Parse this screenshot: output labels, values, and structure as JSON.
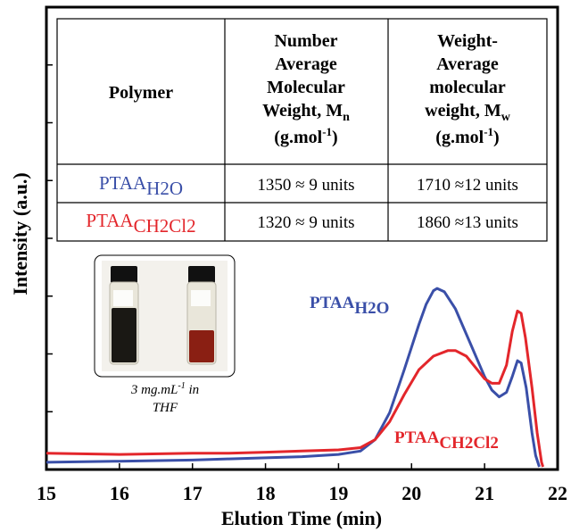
{
  "chart_data": {
    "type": "line",
    "xlabel": "Elution Time (min)",
    "ylabel": "Intensity (a.u.)",
    "xlim": [
      15,
      22
    ],
    "ylim": [
      0,
      1
    ],
    "x_ticks": [
      "15",
      "16",
      "17",
      "18",
      "19",
      "20",
      "21",
      "22"
    ],
    "y_tick_count": 8,
    "y_tick_labels_shown": false,
    "grid": false,
    "series": [
      {
        "name_main": "PTAA",
        "name_sub": "H2O",
        "color": "#3a4fa8",
        "points": [
          [
            15.0,
            0.02
          ],
          [
            16.0,
            0.025
          ],
          [
            17.0,
            0.03
          ],
          [
            17.5,
            0.035
          ],
          [
            18.0,
            0.04
          ],
          [
            18.5,
            0.045
          ],
          [
            19.0,
            0.055
          ],
          [
            19.3,
            0.07
          ],
          [
            19.5,
            0.12
          ],
          [
            19.7,
            0.24
          ],
          [
            19.9,
            0.43
          ],
          [
            20.1,
            0.63
          ],
          [
            20.2,
            0.72
          ],
          [
            20.3,
            0.78
          ],
          [
            20.35,
            0.79
          ],
          [
            20.45,
            0.775
          ],
          [
            20.6,
            0.7
          ],
          [
            20.8,
            0.55
          ],
          [
            21.0,
            0.4
          ],
          [
            21.1,
            0.34
          ],
          [
            21.2,
            0.31
          ],
          [
            21.3,
            0.33
          ],
          [
            21.38,
            0.4
          ],
          [
            21.45,
            0.47
          ],
          [
            21.5,
            0.46
          ],
          [
            21.57,
            0.35
          ],
          [
            21.65,
            0.15
          ],
          [
            21.7,
            0.05
          ],
          [
            21.75,
            0.0
          ]
        ]
      },
      {
        "name_main": "PTAA",
        "name_sub": "CH2Cl2",
        "color": "#e3262b",
        "points": [
          [
            15.0,
            0.06
          ],
          [
            16.0,
            0.055
          ],
          [
            17.0,
            0.06
          ],
          [
            17.5,
            0.06
          ],
          [
            18.0,
            0.065
          ],
          [
            18.5,
            0.07
          ],
          [
            19.0,
            0.075
          ],
          [
            19.3,
            0.085
          ],
          [
            19.5,
            0.12
          ],
          [
            19.7,
            0.2
          ],
          [
            19.9,
            0.32
          ],
          [
            20.1,
            0.43
          ],
          [
            20.3,
            0.49
          ],
          [
            20.5,
            0.515
          ],
          [
            20.6,
            0.515
          ],
          [
            20.75,
            0.49
          ],
          [
            20.9,
            0.43
          ],
          [
            21.0,
            0.39
          ],
          [
            21.1,
            0.37
          ],
          [
            21.2,
            0.37
          ],
          [
            21.3,
            0.45
          ],
          [
            21.38,
            0.6
          ],
          [
            21.45,
            0.69
          ],
          [
            21.5,
            0.68
          ],
          [
            21.56,
            0.57
          ],
          [
            21.65,
            0.35
          ],
          [
            21.72,
            0.15
          ],
          [
            21.78,
            0.02
          ],
          [
            21.8,
            0.0
          ]
        ]
      }
    ],
    "annotations": [
      {
        "text_main": "PTAA",
        "text_sub": "H2O",
        "color": "#3a4fa8"
      },
      {
        "text_main": "PTAA",
        "text_sub": "CH2Cl2",
        "color": "#e3262b"
      }
    ]
  },
  "table": {
    "headers": [
      "Polymer",
      "Number Average Molecular Weight, Mn (g.mol-1)",
      "Weight-Average molecular weight, Mw (g.mol-1)"
    ],
    "header_lines": {
      "col2": [
        "Number",
        "Average",
        "Molecular",
        "Weight, M",
        "n",
        "(g.mol",
        "-1",
        ")"
      ],
      "col3": [
        "Weight-",
        "Average",
        "molecular",
        "weight, M",
        "w",
        "(g.mol",
        "-1",
        ")"
      ]
    },
    "rows": [
      {
        "polymer_main": "PTAA",
        "polymer_sub": "H2O",
        "color": "#3a4fa8",
        "mn": "1350 ≈ 9 units",
        "mw": "1710 ≈12 units"
      },
      {
        "polymer_main": "PTAA",
        "polymer_sub": "CH2Cl2",
        "color": "#e3262b",
        "mn": "1320 ≈ 9 units",
        "mw": "1860 ≈13 units"
      }
    ]
  },
  "inset": {
    "caption_line1": "3 mg.mL",
    "caption_sup": "-1",
    "caption_tail": " in",
    "caption_line2": "THF"
  }
}
